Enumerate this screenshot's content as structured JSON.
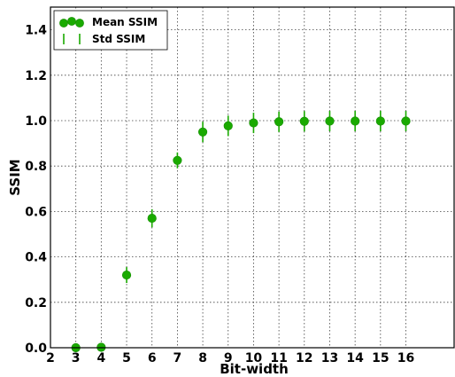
{
  "chart_data": {
    "type": "scatter",
    "xlabel": "Bit-width",
    "ylabel": "SSIM",
    "xlim": [
      2,
      17.9
    ],
    "ylim": [
      0,
      1.5
    ],
    "x_ticks": [
      "2",
      "3",
      "4",
      "5",
      "6",
      "7",
      "8",
      "9",
      "10",
      "11",
      "12",
      "13",
      "14",
      "15",
      "16"
    ],
    "y_ticks": [
      "0.0",
      "0.2",
      "0.4",
      "0.6",
      "0.8",
      "1.0",
      "1.2",
      "1.4"
    ],
    "grid": true,
    "legend_position": "top-left",
    "color": "#1aaa00",
    "series": [
      {
        "name": "Mean SSIM",
        "kind": "points",
        "x": [
          3,
          4,
          5,
          6,
          7,
          8,
          9,
          10,
          11,
          12,
          13,
          14,
          15,
          16
        ],
        "values": [
          0.0,
          0.002,
          0.32,
          0.57,
          0.825,
          0.95,
          0.977,
          0.99,
          0.995,
          0.997,
          0.998,
          0.998,
          0.998,
          0.998
        ]
      },
      {
        "name": "Std SSIM",
        "kind": "error-bars",
        "x": [
          3,
          4,
          5,
          6,
          7,
          8,
          9,
          10,
          11,
          12,
          13,
          14,
          15,
          16
        ],
        "values": [
          0.005,
          0.006,
          0.035,
          0.04,
          0.035,
          0.045,
          0.045,
          0.045,
          0.045,
          0.045,
          0.045,
          0.045,
          0.045,
          0.045
        ]
      }
    ]
  }
}
